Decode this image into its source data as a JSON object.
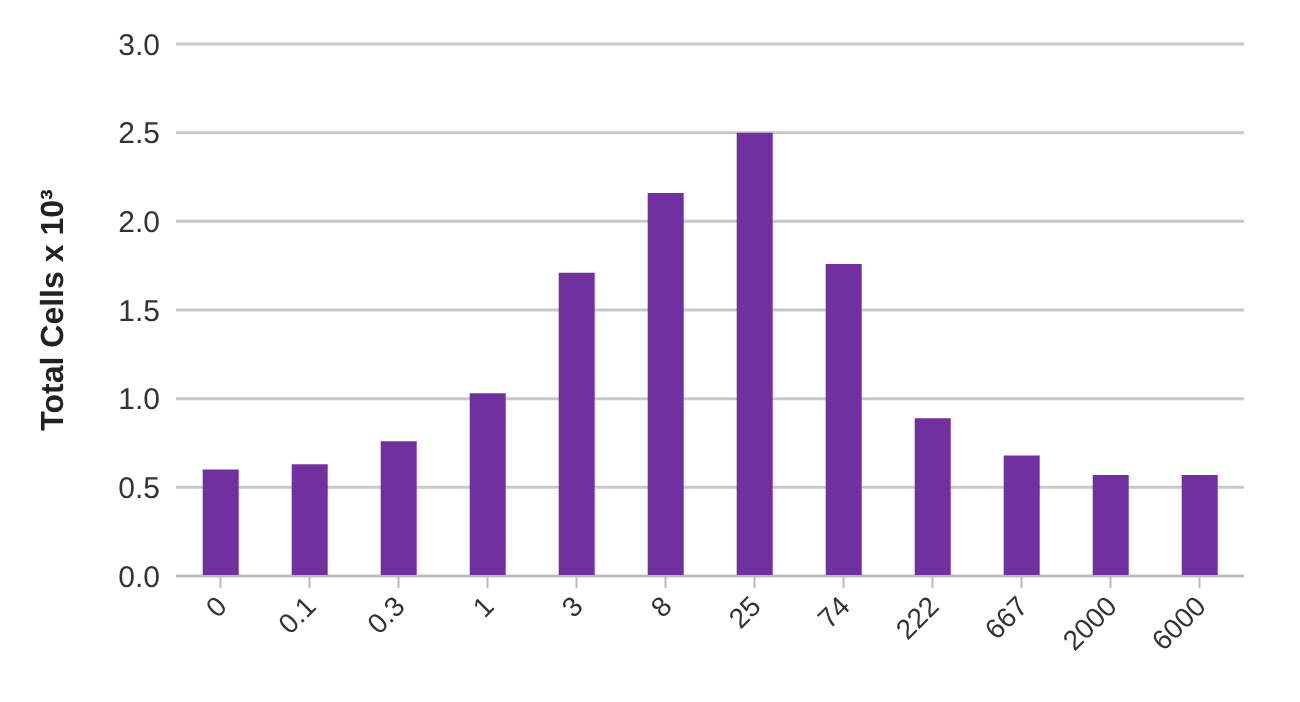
{
  "chart_data": {
    "type": "bar",
    "ylabel": "Total Cells x 10³",
    "categories": [
      "0",
      "0.1",
      "0.3",
      "1",
      "3",
      "8",
      "25",
      "74",
      "222",
      "667",
      "2000",
      "6000"
    ],
    "values": [
      0.6,
      0.63,
      0.76,
      1.03,
      1.71,
      2.16,
      2.5,
      1.76,
      0.89,
      0.68,
      0.57,
      0.57
    ],
    "color": "#7030a0",
    "ylim": [
      0,
      3
    ],
    "yticks": [
      {
        "value": 0,
        "label": "0.0"
      },
      {
        "value": 0.5,
        "label": "0.5"
      },
      {
        "value": 1,
        "label": "1.0"
      },
      {
        "value": 1.5,
        "label": "1.5"
      },
      {
        "value": 2,
        "label": "2.0"
      },
      {
        "value": 2.5,
        "label": "2.5"
      },
      {
        "value": 3,
        "label": "3.0"
      }
    ],
    "grid": "y"
  }
}
